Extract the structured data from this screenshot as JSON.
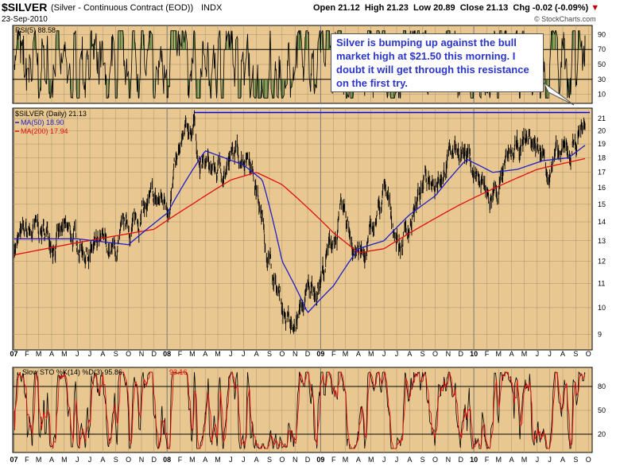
{
  "header": {
    "symbol": "$SILVER",
    "description": "(Silver - Continuous Contract (EOD))",
    "exchange": "INDX",
    "date": "23-Sep-2010",
    "open_label": "Open",
    "open": "21.12",
    "high_label": "High",
    "high": "21.23",
    "low_label": "Low",
    "low": "20.89",
    "close_label": "Close",
    "close": "21.13",
    "chg_label": "Chg",
    "chg": "-0.02 (-0.09%)",
    "watermark": "© StockCharts.com",
    "down_arrow": "▼"
  },
  "annotation": "Silver is bumping up against the bull market high at $21.50 this morning. I doubt it will get through this resistance on the first try.",
  "colors": {
    "panel_bg": "#e8c890",
    "price": "#000000",
    "ma50": "#1f1fc8",
    "ma200": "#e01010",
    "resistance": "#0000ee",
    "rsi_fill": "#3c6e2c",
    "sto_d": "#e01010"
  },
  "chart_data": [
    {
      "type": "line",
      "panel": "rsi",
      "title": "RSI(5) 88.58",
      "series": [
        {
          "name": "RSI(5)",
          "last": 88.58
        }
      ],
      "ylim": [
        0,
        100
      ],
      "ticks": [
        10,
        30,
        50,
        70,
        90
      ],
      "tick_labels": [
        "10",
        "30",
        "50",
        "70",
        "90"
      ],
      "overbought": 70,
      "oversold": 30
    },
    {
      "type": "line",
      "panel": "price",
      "title": "$SILVER (Daily) 21.13",
      "series": [
        {
          "name": "$SILVER (Daily) 21.13",
          "dates": [
            "2007-01-02",
            "2007-03-01",
            "2007-05-01",
            "2007-07-01",
            "2007-09-01",
            "2007-11-01",
            "2008-01-02",
            "2008-03-05",
            "2008-03-20",
            "2008-05-01",
            "2008-07-15",
            "2008-08-15",
            "2008-09-15",
            "2008-10-27",
            "2008-11-20",
            "2008-12-31",
            "2009-02-20",
            "2009-04-15",
            "2009-06-01",
            "2009-07-10",
            "2009-09-15",
            "2009-12-02",
            "2010-02-08",
            "2010-04-01",
            "2010-05-12",
            "2010-07-01",
            "2010-08-15",
            "2010-09-23"
          ],
          "values": [
            12.9,
            13.4,
            13.2,
            12.6,
            12.3,
            14.6,
            15.2,
            20.9,
            17.5,
            17.0,
            18.8,
            13.9,
            10.9,
            9.0,
            10.1,
            11.3,
            14.2,
            12.0,
            15.5,
            12.8,
            16.6,
            19.0,
            15.0,
            17.8,
            19.5,
            17.5,
            18.2,
            21.13
          ]
        },
        {
          "name": "MA(50) 18.90",
          "dates": [
            "2007-01-02",
            "2007-06-01",
            "2007-10-01",
            "2008-01-02",
            "2008-04-01",
            "2008-07-01",
            "2008-08-15",
            "2008-10-01",
            "2008-12-01",
            "2009-02-01",
            "2009-04-01",
            "2009-06-01",
            "2009-08-01",
            "2009-10-01",
            "2009-12-15",
            "2010-02-15",
            "2010-04-15",
            "2010-06-15",
            "2010-08-15",
            "2010-09-23"
          ],
          "values": [
            13.1,
            13.1,
            12.8,
            14.5,
            18.5,
            17.5,
            16.5,
            12.0,
            9.8,
            10.9,
            12.6,
            13.0,
            14.4,
            15.5,
            17.9,
            17.0,
            17.2,
            17.8,
            18.0,
            18.9
          ]
        },
        {
          "name": "MA(200) 17.94",
          "dates": [
            "2007-01-02",
            "2007-06-01",
            "2007-12-01",
            "2008-03-01",
            "2008-06-01",
            "2008-08-01",
            "2008-10-01",
            "2008-12-01",
            "2009-02-01",
            "2009-04-01",
            "2009-06-01",
            "2009-09-01",
            "2009-12-01",
            "2010-03-01",
            "2010-06-01",
            "2010-08-01",
            "2010-09-23"
          ],
          "values": [
            12.3,
            12.9,
            13.6,
            15.0,
            16.5,
            17.0,
            16.2,
            14.8,
            13.4,
            12.4,
            12.6,
            13.8,
            15.0,
            16.1,
            17.2,
            17.6,
            17.94
          ]
        }
      ],
      "resistance": 21.5,
      "ylim": [
        8.5,
        21.8
      ],
      "ticks": [
        9,
        10,
        11,
        12,
        13,
        14,
        15,
        16,
        17,
        18,
        19,
        20,
        21
      ],
      "x_labels": [
        "07",
        "F",
        "M",
        "A",
        "M",
        "J",
        "J",
        "A",
        "S",
        "O",
        "N",
        "D",
        "08",
        "F",
        "M",
        "A",
        "M",
        "J",
        "J",
        "A",
        "S",
        "O",
        "N",
        "D",
        "09",
        "F",
        "M",
        "A",
        "M",
        "J",
        "J",
        "A",
        "S",
        "O",
        "N",
        "D",
        "10",
        "F",
        "M",
        "A",
        "M",
        "J",
        "J",
        "A",
        "S",
        "O"
      ]
    },
    {
      "type": "line",
      "panel": "stochastic",
      "title": "Slow STO %K(14) %D(3) 95.86,",
      "d_value": "93.16",
      "series": [
        {
          "name": "%K(14)",
          "last": 95.86
        },
        {
          "name": "%D(3)",
          "last": 93.16
        }
      ],
      "ylim": [
        0,
        100
      ],
      "ticks": [
        20,
        50,
        80
      ],
      "tick_labels": [
        "20",
        "50",
        "80"
      ]
    }
  ]
}
